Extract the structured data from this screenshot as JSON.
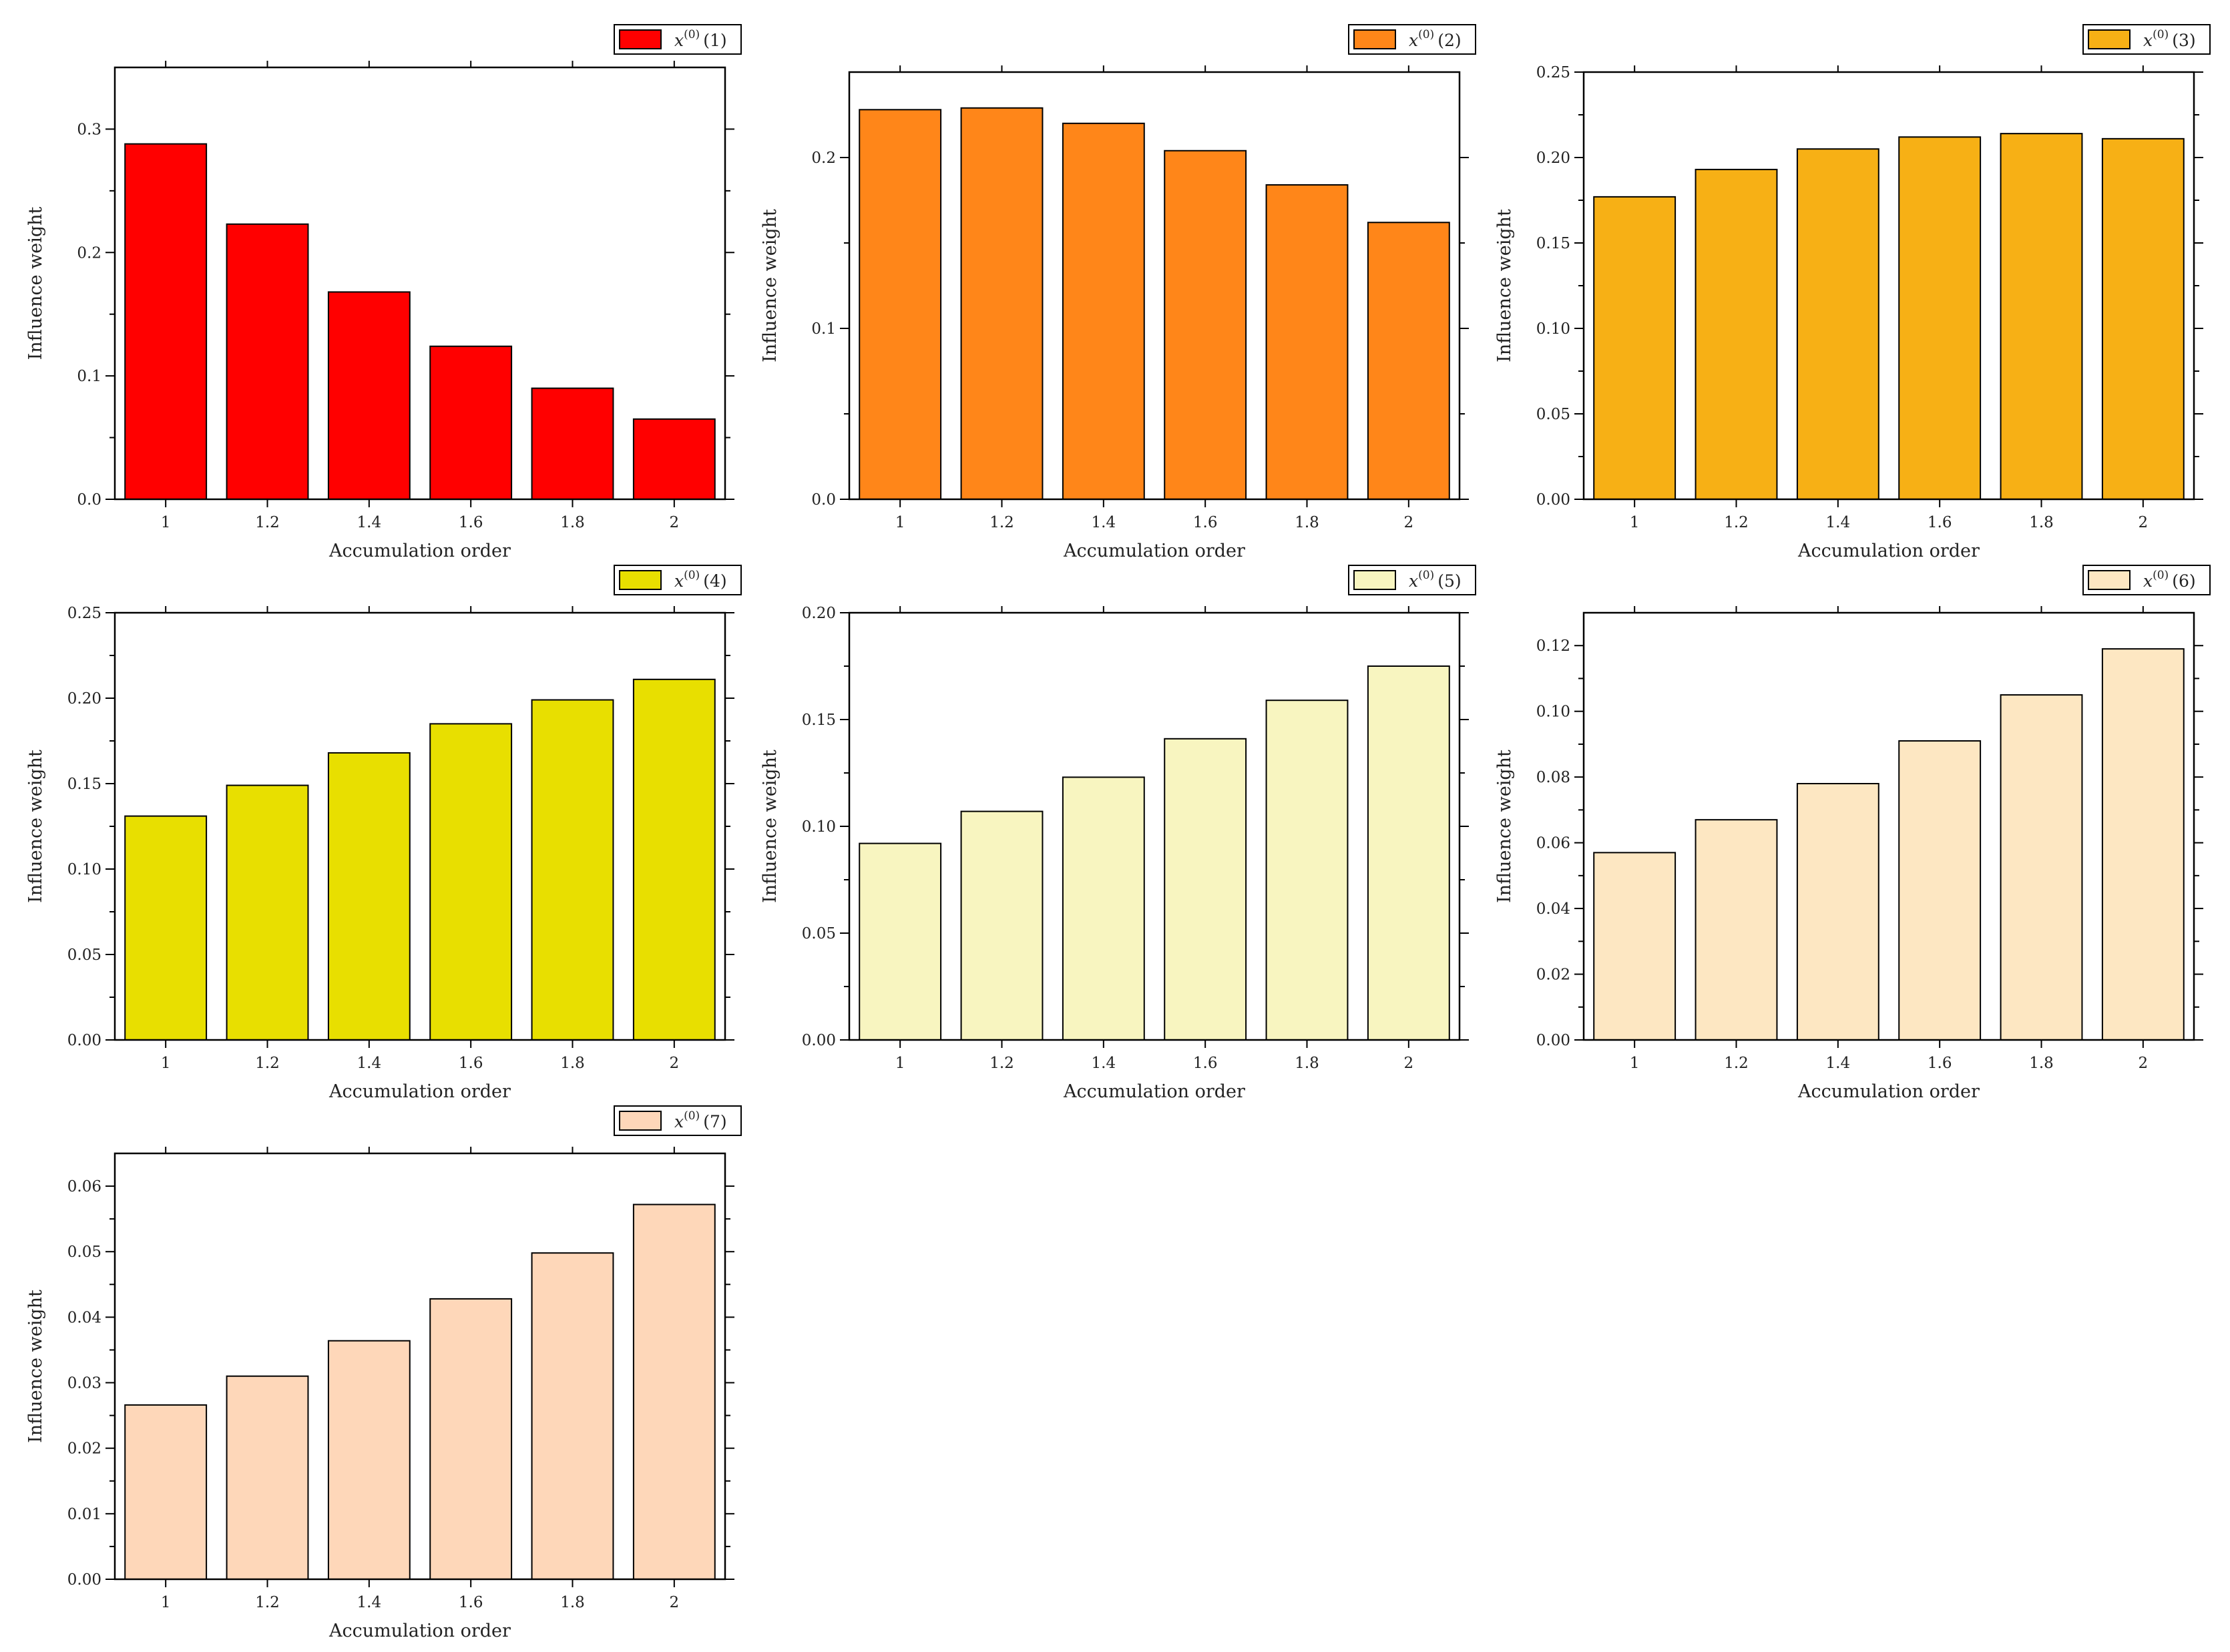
{
  "chart_data": [
    {
      "type": "bar",
      "legend": {
        "var": "x",
        "sup": "(0)",
        "index": "(1)",
        "color": "#ff0000"
      },
      "categories": [
        "1",
        "1.2",
        "1.4",
        "1.6",
        "1.8",
        "2"
      ],
      "values": [
        0.288,
        0.223,
        0.168,
        0.124,
        0.09,
        0.065
      ],
      "xlabel": "Accumulation order",
      "ylabel": "Influence weight",
      "ylim": [
        0,
        0.35
      ],
      "yticks": [
        0.0,
        0.1,
        0.2,
        0.3
      ],
      "ytick_labels": [
        "0.0",
        "0.1",
        "0.2",
        "0.3"
      ],
      "legend_position": "top-right"
    },
    {
      "type": "bar",
      "legend": {
        "var": "x",
        "sup": "(0)",
        "index": "(2)",
        "color": "#ff8619"
      },
      "categories": [
        "1",
        "1.2",
        "1.4",
        "1.6",
        "1.8",
        "2"
      ],
      "values": [
        0.228,
        0.229,
        0.22,
        0.204,
        0.184,
        0.162
      ],
      "xlabel": "Accumulation order",
      "ylabel": "Influence weight",
      "ylim": [
        0,
        0.25
      ],
      "yticks": [
        0.0,
        0.1,
        0.2
      ],
      "ytick_labels": [
        "0.0",
        "0.1",
        "0.2"
      ],
      "legend_position": "top-right"
    },
    {
      "type": "bar",
      "legend": {
        "var": "x",
        "sup": "(0)",
        "index": "(3)",
        "color": "#f7b015"
      },
      "categories": [
        "1",
        "1.2",
        "1.4",
        "1.6",
        "1.8",
        "2"
      ],
      "values": [
        0.177,
        0.193,
        0.205,
        0.212,
        0.214,
        0.211
      ],
      "xlabel": "Accumulation order",
      "ylabel": "Influence weight",
      "ylim": [
        0,
        0.25
      ],
      "yticks": [
        0.0,
        0.05,
        0.1,
        0.15,
        0.2,
        0.25
      ],
      "ytick_labels": [
        "0.00",
        "0.05",
        "0.10",
        "0.15",
        "0.20",
        "0.25"
      ],
      "legend_position": "top-right"
    },
    {
      "type": "bar",
      "legend": {
        "var": "x",
        "sup": "(0)",
        "index": "(4)",
        "color": "#e8df00"
      },
      "categories": [
        "1",
        "1.2",
        "1.4",
        "1.6",
        "1.8",
        "2"
      ],
      "values": [
        0.131,
        0.149,
        0.168,
        0.185,
        0.199,
        0.211
      ],
      "xlabel": "Accumulation order",
      "ylabel": "Influence weight",
      "ylim": [
        0,
        0.25
      ],
      "yticks": [
        0.0,
        0.05,
        0.1,
        0.15,
        0.2,
        0.25
      ],
      "ytick_labels": [
        "0.00",
        "0.05",
        "0.10",
        "0.15",
        "0.20",
        "0.25"
      ],
      "legend_position": "top-right"
    },
    {
      "type": "bar",
      "legend": {
        "var": "x",
        "sup": "(0)",
        "index": "(5)",
        "color": "#f8f5c0"
      },
      "categories": [
        "1",
        "1.2",
        "1.4",
        "1.6",
        "1.8",
        "2"
      ],
      "values": [
        0.092,
        0.107,
        0.123,
        0.141,
        0.159,
        0.175
      ],
      "xlabel": "Accumulation order",
      "ylabel": "Influence weight",
      "ylim": [
        0,
        0.2
      ],
      "yticks": [
        0.0,
        0.05,
        0.1,
        0.15,
        0.2
      ],
      "ytick_labels": [
        "0.00",
        "0.05",
        "0.10",
        "0.15",
        "0.20"
      ],
      "legend_position": "top-right"
    },
    {
      "type": "bar",
      "legend": {
        "var": "x",
        "sup": "(0)",
        "index": "(6)",
        "color": "#fde7c2"
      },
      "categories": [
        "1",
        "1.2",
        "1.4",
        "1.6",
        "1.8",
        "2"
      ],
      "values": [
        0.057,
        0.067,
        0.078,
        0.091,
        0.105,
        0.119
      ],
      "xlabel": "Accumulation order",
      "ylabel": "Influence weight",
      "ylim": [
        0,
        0.13
      ],
      "yticks": [
        0.0,
        0.02,
        0.04,
        0.06,
        0.08,
        0.1,
        0.12
      ],
      "ytick_labels": [
        "0.00",
        "0.02",
        "0.04",
        "0.06",
        "0.08",
        "0.10",
        "0.12"
      ],
      "legend_position": "top-right"
    },
    {
      "type": "bar",
      "legend": {
        "var": "x",
        "sup": "(0)",
        "index": "(7)",
        "color": "#fed7b9"
      },
      "categories": [
        "1",
        "1.2",
        "1.4",
        "1.6",
        "1.8",
        "2"
      ],
      "values": [
        0.0266,
        0.031,
        0.0364,
        0.0428,
        0.0498,
        0.0572
      ],
      "xlabel": "Accumulation order",
      "ylabel": "Influence weight",
      "ylim": [
        0,
        0.065
      ],
      "yticks": [
        0.0,
        0.01,
        0.02,
        0.03,
        0.04,
        0.05,
        0.06
      ],
      "ytick_labels": [
        "0.00",
        "0.01",
        "0.02",
        "0.03",
        "0.04",
        "0.05",
        "0.06"
      ],
      "legend_position": "top-right"
    }
  ]
}
